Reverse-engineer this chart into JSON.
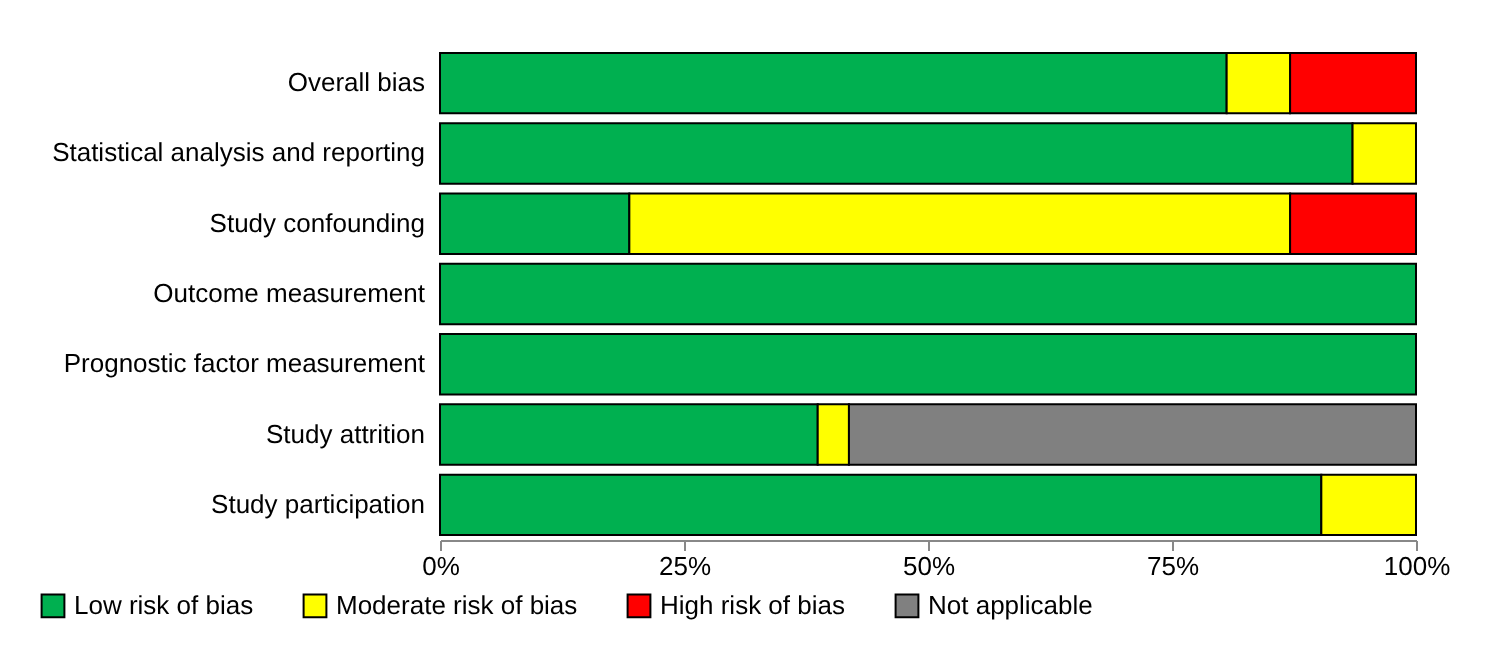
{
  "chart_data": {
    "type": "bar",
    "orientation": "horizontal",
    "stacked": true,
    "categories": [
      "Overall bias",
      "Statistical analysis and reporting",
      "Study confounding",
      "Outcome measurement",
      "Prognostic factor measurement",
      "Study attrition",
      "Study participation"
    ],
    "series": [
      {
        "name": "Low risk of bias",
        "color": "#00b050",
        "values": [
          80.6,
          93.5,
          19.4,
          100,
          100,
          38.7,
          90.3
        ]
      },
      {
        "name": "Moderate risk of bias",
        "color": "#ffff00",
        "values": [
          6.5,
          6.5,
          67.7,
          null,
          null,
          3.2,
          9.7
        ]
      },
      {
        "name": "High risk of bias",
        "color": "#ff0000",
        "values": [
          12.9,
          null,
          12.9,
          null,
          null,
          null,
          null
        ]
      },
      {
        "name": "Not applicable",
        "color": "#808080",
        "values": [
          null,
          null,
          null,
          null,
          null,
          58.1,
          null
        ]
      }
    ],
    "xlim": [
      0,
      100
    ],
    "xticks": [
      {
        "value": 0,
        "label": "0%"
      },
      {
        "value": 25,
        "label": "25%"
      },
      {
        "value": 50,
        "label": "50%"
      },
      {
        "value": 75,
        "label": "75%"
      },
      {
        "value": 100,
        "label": "100%"
      }
    ],
    "grid": false,
    "legend": "bottom"
  }
}
